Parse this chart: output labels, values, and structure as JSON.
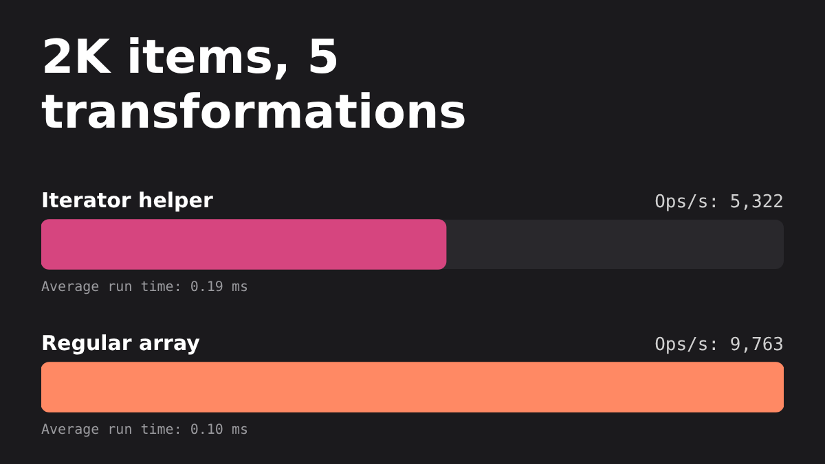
{
  "chart_data": {
    "type": "bar",
    "orientation": "horizontal",
    "title": "2K items, 5 transformations",
    "categories": [
      "Iterator helper",
      "Regular array"
    ],
    "values": [
      5322,
      9763
    ],
    "colors": [
      "#d6457f",
      "#ff8964"
    ],
    "value_labels": [
      "Ops/s: 5,322",
      "Ops/s: 9,763"
    ],
    "annotations": [
      "Average run time: 0.19 ms",
      "Average run time: 0.10 ms"
    ],
    "legend": false
  }
}
